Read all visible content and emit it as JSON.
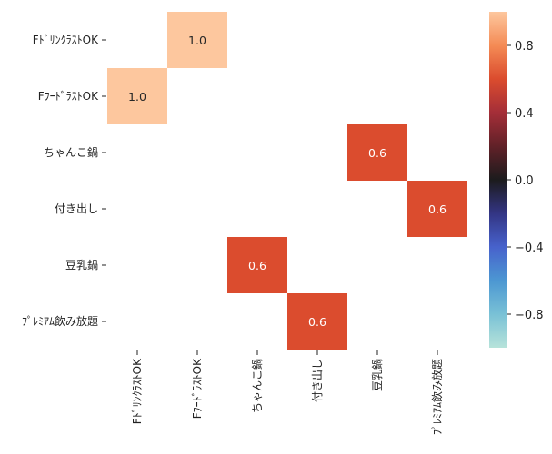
{
  "chart_data": {
    "type": "heatmap",
    "title": "",
    "xlabel": "",
    "ylabel": "",
    "x_categories": [
      "FﾄﾞﾘﾝｸﾗｽﾄOK",
      "FﾌｰﾄﾞﾗｽﾄOK",
      "ちゃんこ鍋",
      "付き出し",
      "豆乳鍋",
      "ﾌﾟﾚﾐｱﾑ飲み放題"
    ],
    "y_categories": [
      "FﾄﾞﾘﾝｸﾗｽﾄOK",
      "FﾌｰﾄﾞﾗｽﾄOK",
      "ちゃんこ鍋",
      "付き出し",
      "豆乳鍋",
      "ﾌﾟﾚﾐｱﾑ飲み放題"
    ],
    "values": [
      [
        null,
        1.0,
        null,
        null,
        null,
        null
      ],
      [
        1.0,
        null,
        null,
        null,
        null,
        null
      ],
      [
        null,
        null,
        null,
        null,
        0.6,
        null
      ],
      [
        null,
        null,
        null,
        null,
        null,
        0.6
      ],
      [
        null,
        null,
        0.6,
        null,
        null,
        null
      ],
      [
        null,
        null,
        null,
        0.6,
        null,
        null
      ]
    ],
    "cell_labels": [
      [
        null,
        "1.0",
        null,
        null,
        null,
        null
      ],
      [
        "1.0",
        null,
        null,
        null,
        null,
        null
      ],
      [
        null,
        null,
        null,
        null,
        "0.6",
        null
      ],
      [
        null,
        null,
        null,
        null,
        null,
        "0.6"
      ],
      [
        null,
        null,
        "0.6",
        null,
        null,
        null
      ],
      [
        null,
        null,
        null,
        "0.6",
        null,
        null
      ]
    ],
    "colorbar": {
      "range": [
        -1.0,
        1.0
      ],
      "ticks": [
        -0.8,
        -0.4,
        0.0,
        0.4,
        0.8
      ],
      "tick_labels": [
        "−0.8",
        "−0.4",
        "0.0",
        "0.4",
        "0.8"
      ],
      "colormap": "icefire"
    },
    "grid": false,
    "legend": "colorbar-right"
  }
}
